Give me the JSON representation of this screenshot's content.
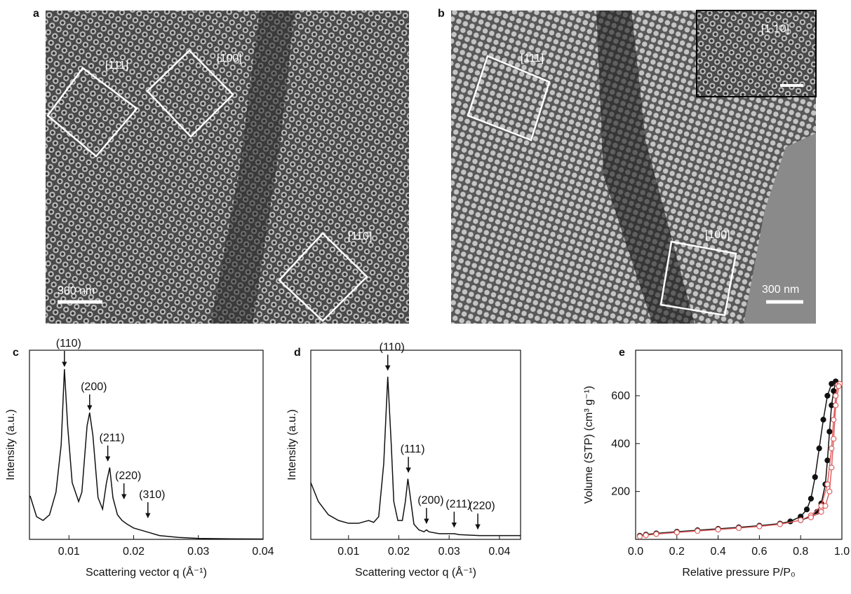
{
  "images": [
    {
      "label": "a",
      "annotations": [
        "[111]",
        "[100]",
        "[110]"
      ],
      "scale_bar": "300 nm"
    },
    {
      "label": "b",
      "annotations": [
        "[111]",
        "[100]"
      ],
      "inset_label": "[1 10]",
      "scale_bar": "300 nm"
    }
  ],
  "chart_data": [
    {
      "type": "line",
      "panel_label": "c",
      "xlabel": "Scattering vector q (Å⁻¹)",
      "ylabel": "Intensity (a.u.)",
      "color": "#111111",
      "x": [
        0.004,
        0.005,
        0.006,
        0.007,
        0.008,
        0.0088,
        0.0093,
        0.0098,
        0.0105,
        0.0115,
        0.012,
        0.0128,
        0.0132,
        0.0137,
        0.0145,
        0.0152,
        0.0158,
        0.0163,
        0.0168,
        0.0175,
        0.0182,
        0.019,
        0.02,
        0.022,
        0.024,
        0.027,
        0.03,
        0.035,
        0.04
      ],
      "values": [
        0.23,
        0.12,
        0.1,
        0.13,
        0.25,
        0.5,
        0.9,
        0.6,
        0.3,
        0.2,
        0.25,
        0.6,
        0.67,
        0.55,
        0.22,
        0.16,
        0.3,
        0.38,
        0.22,
        0.13,
        0.1,
        0.08,
        0.06,
        0.04,
        0.02,
        0.01,
        0.005,
        0.003,
        0.002
      ],
      "xlim": [
        0.0039,
        0.04
      ],
      "ylim": [
        0,
        1
      ],
      "xticks": [
        0.01,
        0.02,
        0.03,
        0.04
      ],
      "annotations": [
        {
          "text": "(110)",
          "x": 0.0093,
          "y": 0.9
        },
        {
          "text": "(200)",
          "x": 0.0132,
          "y": 0.67
        },
        {
          "text": "(211)",
          "x": 0.016,
          "y": 0.4
        },
        {
          "text": "(220)",
          "x": 0.0185,
          "y": 0.2
        },
        {
          "text": "(310)",
          "x": 0.0222,
          "y": 0.1
        }
      ]
    },
    {
      "type": "line",
      "panel_label": "d",
      "xlabel": "Scattering vector q (Å⁻¹)",
      "ylabel": "Intensity (a.u.)",
      "color": "#111111",
      "x": [
        0.0025,
        0.004,
        0.006,
        0.008,
        0.01,
        0.012,
        0.014,
        0.015,
        0.016,
        0.017,
        0.0178,
        0.0185,
        0.019,
        0.0198,
        0.0207,
        0.0213,
        0.0218,
        0.0223,
        0.023,
        0.024,
        0.025,
        0.0255,
        0.026,
        0.028,
        0.031,
        0.032,
        0.036,
        0.0442
      ],
      "values": [
        0.3,
        0.2,
        0.13,
        0.1,
        0.085,
        0.085,
        0.1,
        0.09,
        0.12,
        0.4,
        0.86,
        0.5,
        0.2,
        0.1,
        0.1,
        0.2,
        0.32,
        0.22,
        0.08,
        0.05,
        0.04,
        0.05,
        0.04,
        0.03,
        0.03,
        0.025,
        0.02,
        0.02
      ],
      "xlim": [
        0.0025,
        0.0442
      ],
      "ylim": [
        0,
        1
      ],
      "xticks": [
        0.01,
        0.02,
        0.03,
        0.04
      ],
      "annotations": [
        {
          "text": "(110)",
          "x": 0.0178,
          "y": 0.88
        },
        {
          "text": "(111)",
          "x": 0.0219,
          "y": 0.34
        },
        {
          "text": "(200)",
          "x": 0.0255,
          "y": 0.07
        },
        {
          "text": "(211)",
          "x": 0.031,
          "y": 0.05
        },
        {
          "text": "(220)",
          "x": 0.0357,
          "y": 0.04
        }
      ]
    },
    {
      "type": "line",
      "panel_label": "e",
      "xlabel": "Relative pressure P/P₀",
      "ylabel": "Volume (STP) (cm³ g⁻¹)",
      "xlim": [
        0,
        1
      ],
      "ylim": [
        0,
        790
      ],
      "xticks": [
        {
          "value": 0,
          "label": "0.0"
        },
        0.2,
        0.4,
        0.6,
        0.8,
        {
          "value": 1,
          "label": "1.0"
        }
      ],
      "yticks": [
        200,
        400,
        600
      ],
      "series": [
        {
          "color": "#111111",
          "marker": "filled",
          "x": [
            0.02,
            0.05,
            0.1,
            0.2,
            0.3,
            0.4,
            0.5,
            0.6,
            0.7,
            0.75,
            0.8,
            0.83,
            0.85,
            0.87,
            0.89,
            0.91,
            0.93,
            0.95,
            0.97,
            0.96,
            0.95,
            0.94,
            0.93,
            0.92,
            0.9,
            0.88,
            0.85,
            0.8
          ],
          "values": [
            15,
            20,
            25,
            32,
            38,
            44,
            50,
            57,
            66,
            75,
            95,
            125,
            170,
            260,
            380,
            500,
            600,
            650,
            660,
            620,
            560,
            450,
            330,
            230,
            150,
            115,
            95,
            80
          ]
        },
        {
          "color": "#e06060",
          "marker": "open",
          "x": [
            0.02,
            0.05,
            0.1,
            0.2,
            0.3,
            0.4,
            0.5,
            0.6,
            0.7,
            0.8,
            0.85,
            0.9,
            0.93,
            0.95,
            0.96,
            0.97,
            0.98,
            0.99,
            0.985,
            0.97,
            0.96,
            0.95,
            0.94,
            0.92,
            0.9,
            0.85
          ],
          "values": [
            12,
            17,
            22,
            29,
            35,
            41,
            47,
            54,
            63,
            80,
            100,
            140,
            230,
            380,
            500,
            600,
            645,
            650,
            640,
            560,
            420,
            300,
            200,
            140,
            115,
            92
          ]
        }
      ]
    }
  ]
}
